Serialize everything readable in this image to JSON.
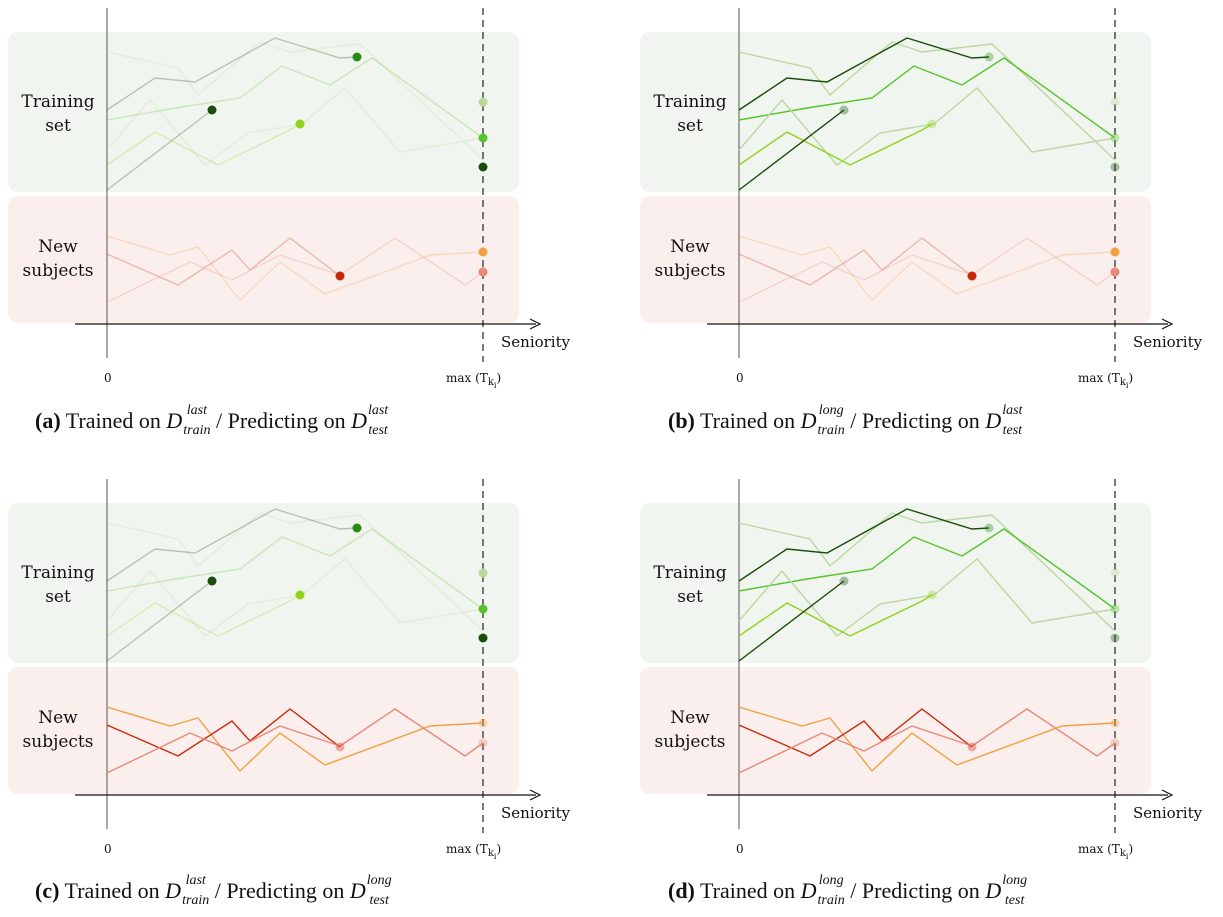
{
  "colors": {
    "train_bg": "#f1f5ef",
    "test_bg": "#fbefed",
    "greens": [
      "#1a4d0c",
      "#2a8a14",
      "#55c42c",
      "#8fd41c",
      "#bcd7a0"
    ],
    "reds": [
      "#c8280c",
      "#f0a040",
      "#e88878"
    ]
  },
  "labels": {
    "training_line1": "Training",
    "training_line2": "set",
    "new_line1": "New",
    "new_line2": "subjects",
    "x_axis": "Seniority",
    "tick_zero": "0",
    "tick_max": "max (T",
    "tick_max_sub": "k",
    "tick_max_subsub": "i",
    "tick_max_close": ")"
  },
  "panels": [
    {
      "id": "a",
      "caption_tag": "(a)",
      "caption_trained": "Trained on ",
      "train_sup": "last",
      "caption_sep": " / Predicting on ",
      "test_sup": "last",
      "train_mode": "last",
      "test_mode": "last"
    },
    {
      "id": "b",
      "caption_tag": "(b)",
      "caption_trained": "Trained on ",
      "train_sup": "long",
      "caption_sep": " / Predicting on ",
      "test_sup": "last",
      "train_mode": "long",
      "test_mode": "last"
    },
    {
      "id": "c",
      "caption_tag": "(c)",
      "caption_trained": "Trained on ",
      "train_sup": "last",
      "caption_sep": " / Predicting on ",
      "test_sup": "long",
      "train_mode": "last",
      "test_mode": "long"
    },
    {
      "id": "d",
      "caption_tag": "(d)",
      "caption_trained": "Trained on ",
      "train_sup": "long",
      "caption_sep": " / Predicting on ",
      "test_sup": "long",
      "train_mode": "long",
      "test_mode": "long"
    }
  ],
  "caption_D": "D",
  "caption_train_sub": "train",
  "caption_test_sub": "test"
}
